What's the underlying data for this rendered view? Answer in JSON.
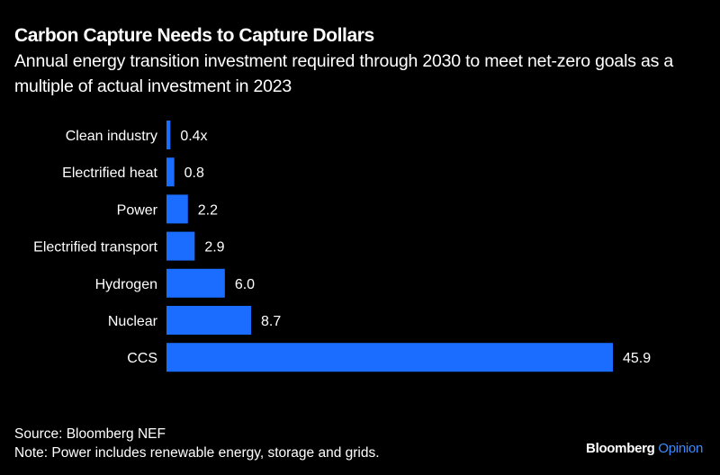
{
  "header": {
    "title": "Carbon Capture Needs to Capture Dollars",
    "subtitle": "Annual energy transition investment required through 2030 to meet net-zero goals as a multiple of actual investment in 2023"
  },
  "chart_data": {
    "type": "bar",
    "orientation": "horizontal",
    "title": "Carbon Capture Needs to Capture Dollars",
    "subtitle": "Annual energy transition investment required through 2030 to meet net-zero goals as a multiple of actual investment in 2023",
    "categories": [
      "Clean industry",
      "Electrified heat",
      "Power",
      "Electrified transport",
      "Hydrogen",
      "Nuclear",
      "CCS"
    ],
    "values": [
      0.4,
      0.8,
      2.2,
      2.9,
      6.0,
      8.7,
      45.9
    ],
    "value_labels": [
      "0.4x",
      "0.8",
      "2.2",
      "2.9",
      "6.0",
      "8.7",
      "45.9"
    ],
    "xlabel": "",
    "ylabel": "",
    "xlim": [
      0,
      45.9
    ],
    "grid": false,
    "bar_color": "#1a6dff"
  },
  "footer": {
    "source": "Source: Bloomberg NEF",
    "note": "Note: Power includes renewable energy, storage and grids."
  },
  "brand": {
    "name": "Bloomberg",
    "section": "Opinion",
    "section_color": "#3d8bff"
  }
}
